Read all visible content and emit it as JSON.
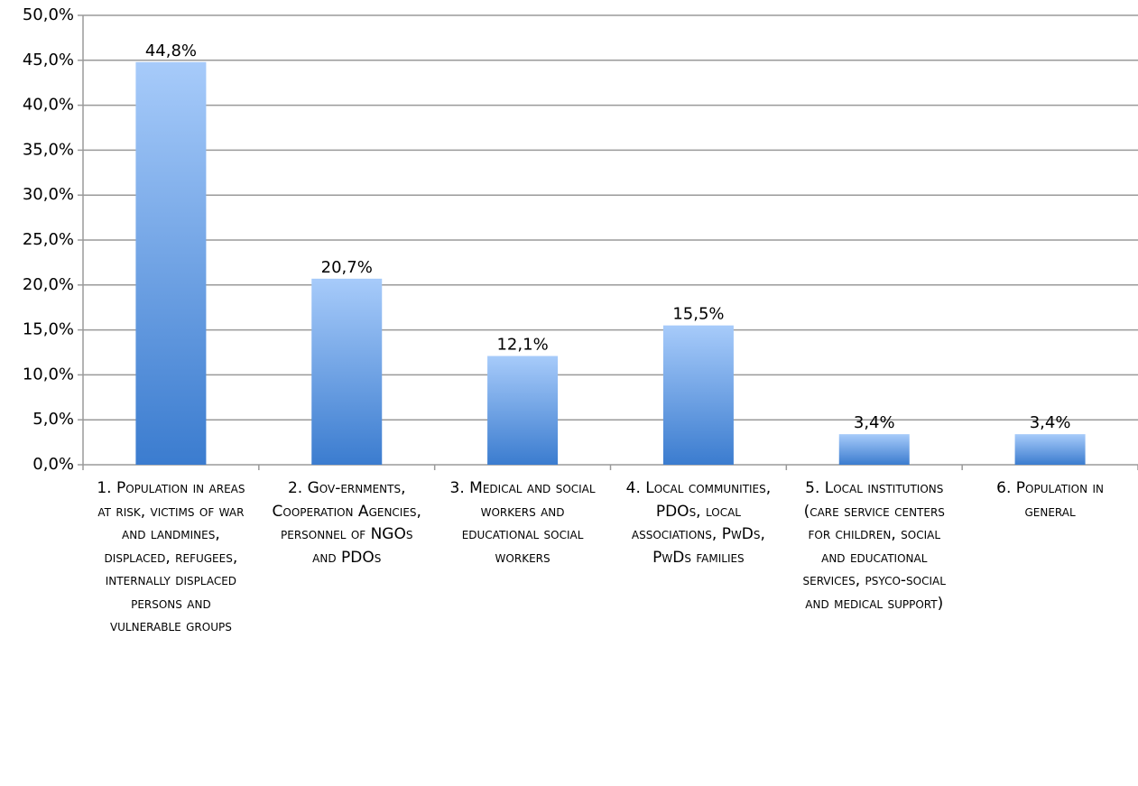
{
  "chart_data": {
    "type": "bar",
    "categories": [
      "1. Population in areas at risk, victims of war and landmines, displaced, refugees, internally displaced persons and vulnerable groups",
      "2. Gov-ernments, Cooperation Agencies, personnel of NGOs and PDOs",
      "3. Medical and social workers and educational social workers",
      "4. Local communities, PDOs, local associations, PwDs, PwDs families",
      "5. Local institutions (care service centers for children, social and educational services, psyco-social and medical support)",
      "6. Population in general"
    ],
    "values": [
      44.8,
      20.7,
      12.1,
      15.5,
      3.4,
      3.4
    ],
    "value_labels": [
      "44,8%",
      "20,7%",
      "12,1%",
      "15,5%",
      "3,4%",
      "3,4%"
    ],
    "color": "#4a86d6",
    "ylim": [
      0,
      50
    ],
    "yticks": [
      {
        "value": 0,
        "label": "0,0%"
      },
      {
        "value": 5,
        "label": "5,0%"
      },
      {
        "value": 10,
        "label": "10,0%"
      },
      {
        "value": 15,
        "label": "15,0%"
      },
      {
        "value": 20,
        "label": "20,0%"
      },
      {
        "value": 25,
        "label": "25,0%"
      },
      {
        "value": 30,
        "label": "30,0%"
      },
      {
        "value": 35,
        "label": "35,0%"
      },
      {
        "value": 40,
        "label": "40,0%"
      },
      {
        "value": 45,
        "label": "45,0%"
      },
      {
        "value": 50,
        "label": "50,0%"
      }
    ],
    "grid": true
  }
}
